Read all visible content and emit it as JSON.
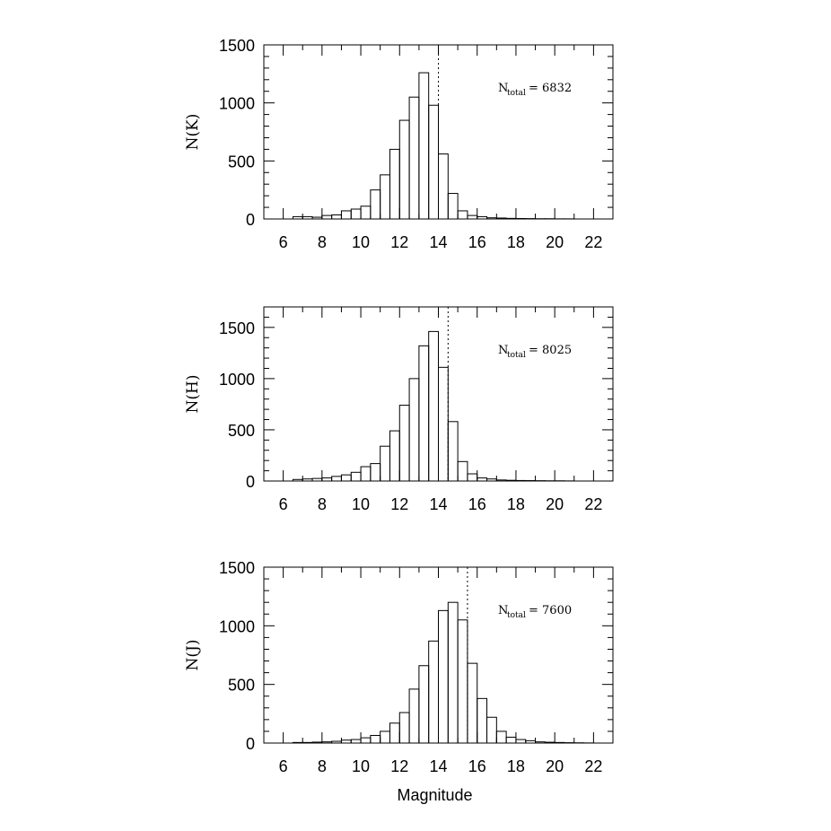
{
  "chart_data": [
    {
      "type": "bar",
      "histogram": true,
      "ylabel": "N(K)",
      "xlabel": "",
      "xlim": [
        5,
        23
      ],
      "ylim": [
        0,
        1500
      ],
      "xticks": [
        6,
        8,
        10,
        12,
        14,
        16,
        18,
        20,
        22
      ],
      "yticks": [
        0,
        500,
        1000,
        1500
      ],
      "bin_width": 0.5,
      "bin_start": 6.5,
      "values": [
        20,
        20,
        15,
        30,
        35,
        70,
        85,
        110,
        250,
        380,
        600,
        850,
        1050,
        1260,
        980,
        560,
        220,
        70,
        30,
        20,
        10,
        8,
        5,
        4,
        3,
        2,
        2,
        1,
        1,
        0,
        0,
        0
      ],
      "vline": 14.0,
      "annotation": {
        "label": "N",
        "sub": "total",
        "text": " =  6832"
      }
    },
    {
      "type": "bar",
      "histogram": true,
      "ylabel": "N(H)",
      "xlabel": "",
      "xlim": [
        5,
        23
      ],
      "ylim": [
        0,
        1700
      ],
      "xticks": [
        6,
        8,
        10,
        12,
        14,
        16,
        18,
        20,
        22
      ],
      "yticks": [
        0,
        500,
        1000,
        1500
      ],
      "bin_width": 0.5,
      "bin_start": 6.5,
      "values": [
        15,
        20,
        25,
        30,
        45,
        60,
        85,
        140,
        170,
        340,
        490,
        740,
        1000,
        1320,
        1460,
        1110,
        580,
        190,
        70,
        30,
        20,
        10,
        7,
        5,
        4,
        3,
        2,
        2,
        1,
        0,
        0,
        0
      ],
      "vline": 14.5,
      "annotation": {
        "label": "N",
        "sub": "total",
        "text": " =  8025"
      }
    },
    {
      "type": "bar",
      "histogram": true,
      "ylabel": "N(J)",
      "xlabel": "Magnitude",
      "xlim": [
        5,
        23
      ],
      "ylim": [
        0,
        1500
      ],
      "xticks": [
        6,
        8,
        10,
        12,
        14,
        16,
        18,
        20,
        22
      ],
      "yticks": [
        0,
        500,
        1000,
        1500
      ],
      "bin_width": 0.5,
      "bin_start": 6.5,
      "values": [
        5,
        5,
        8,
        10,
        15,
        25,
        30,
        45,
        65,
        100,
        170,
        260,
        460,
        660,
        870,
        1130,
        1200,
        1050,
        680,
        380,
        220,
        100,
        50,
        30,
        20,
        10,
        7,
        5,
        3,
        2,
        1,
        0
      ],
      "vline": 15.5,
      "annotation": {
        "label": "N",
        "sub": "total",
        "text": " =  7600"
      }
    }
  ]
}
